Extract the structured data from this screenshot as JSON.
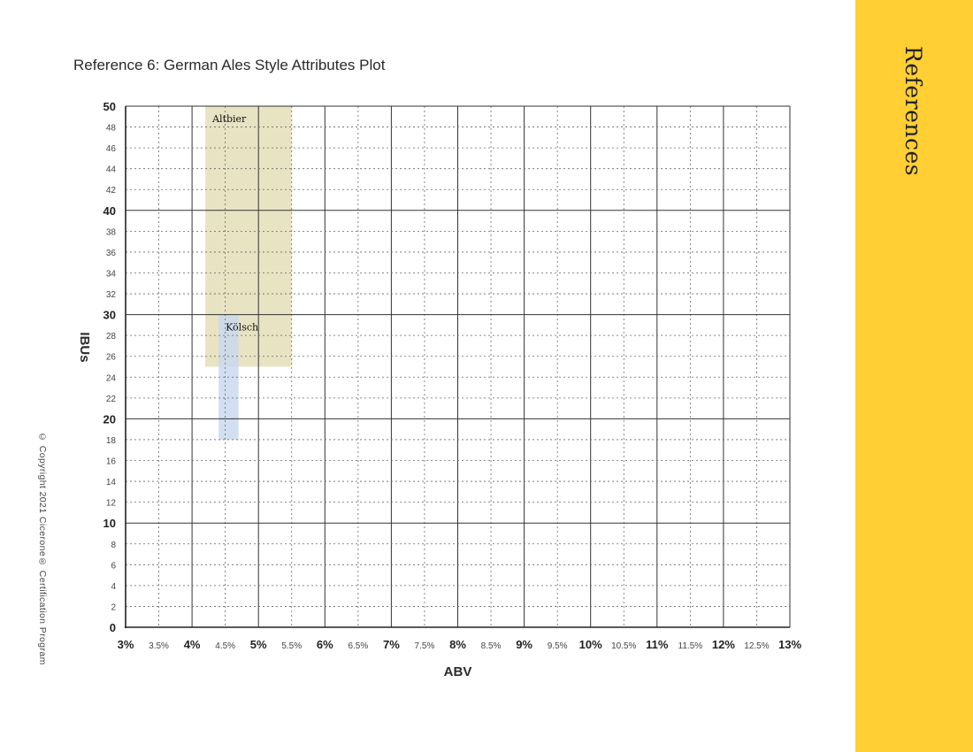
{
  "sidebar": {
    "title": "References"
  },
  "copyright": "© Copyright 2021 Cicerone® Certification Program",
  "colors": {
    "sidebar": "#ffcf33",
    "altbier_fill": "#e8e3c3",
    "kolsch_fill": "#c9d9ed",
    "grid_major": "#333333",
    "grid_minor": "#666666"
  },
  "chart_data": {
    "type": "range-boxes",
    "title": "Reference 6: German Ales Style Attributes Plot",
    "xlabel": "ABV",
    "ylabel": "IBUs",
    "xlim": [
      3,
      13
    ],
    "ylim": [
      0,
      50
    ],
    "x_ticks": [
      {
        "value": 3,
        "label": "3%",
        "major": true
      },
      {
        "value": 3.5,
        "label": "3.5%",
        "major": false
      },
      {
        "value": 4,
        "label": "4%",
        "major": true
      },
      {
        "value": 4.5,
        "label": "4.5%",
        "major": false
      },
      {
        "value": 5,
        "label": "5%",
        "major": true
      },
      {
        "value": 5.5,
        "label": "5.5%",
        "major": false
      },
      {
        "value": 6,
        "label": "6%",
        "major": true
      },
      {
        "value": 6.5,
        "label": "6.5%",
        "major": false
      },
      {
        "value": 7,
        "label": "7%",
        "major": true
      },
      {
        "value": 7.5,
        "label": "7.5%",
        "major": false
      },
      {
        "value": 8,
        "label": "8%",
        "major": true
      },
      {
        "value": 8.5,
        "label": "8.5%",
        "major": false
      },
      {
        "value": 9,
        "label": "9%",
        "major": true
      },
      {
        "value": 9.5,
        "label": "9.5%",
        "major": false
      },
      {
        "value": 10,
        "label": "10%",
        "major": true
      },
      {
        "value": 10.5,
        "label": "10.5%",
        "major": false
      },
      {
        "value": 11,
        "label": "11%",
        "major": true
      },
      {
        "value": 11.5,
        "label": "11.5%",
        "major": false
      },
      {
        "value": 12,
        "label": "12%",
        "major": true
      },
      {
        "value": 12.5,
        "label": "12.5%",
        "major": false
      },
      {
        "value": 13,
        "label": "13%",
        "major": true
      }
    ],
    "y_ticks": [
      {
        "value": 0,
        "label": "0",
        "major": true
      },
      {
        "value": 2,
        "label": "2",
        "major": false
      },
      {
        "value": 4,
        "label": "4",
        "major": false
      },
      {
        "value": 6,
        "label": "6",
        "major": false
      },
      {
        "value": 8,
        "label": "8",
        "major": false
      },
      {
        "value": 10,
        "label": "10",
        "major": true
      },
      {
        "value": 12,
        "label": "12",
        "major": false
      },
      {
        "value": 14,
        "label": "14",
        "major": false
      },
      {
        "value": 16,
        "label": "16",
        "major": false
      },
      {
        "value": 18,
        "label": "18",
        "major": false
      },
      {
        "value": 20,
        "label": "20",
        "major": true
      },
      {
        "value": 22,
        "label": "22",
        "major": false
      },
      {
        "value": 24,
        "label": "24",
        "major": false
      },
      {
        "value": 26,
        "label": "26",
        "major": false
      },
      {
        "value": 28,
        "label": "28",
        "major": false
      },
      {
        "value": 30,
        "label": "30",
        "major": true
      },
      {
        "value": 32,
        "label": "32",
        "major": false
      },
      {
        "value": 34,
        "label": "34",
        "major": false
      },
      {
        "value": 36,
        "label": "36",
        "major": false
      },
      {
        "value": 38,
        "label": "38",
        "major": false
      },
      {
        "value": 40,
        "label": "40",
        "major": true
      },
      {
        "value": 42,
        "label": "42",
        "major": false
      },
      {
        "value": 44,
        "label": "44",
        "major": false
      },
      {
        "value": 46,
        "label": "46",
        "major": false
      },
      {
        "value": 48,
        "label": "48",
        "major": false
      },
      {
        "value": 50,
        "label": "50",
        "major": true
      }
    ],
    "grid": "major solid, minor dotted",
    "series": [
      {
        "name": "Altbier",
        "abv": [
          4.2,
          5.5
        ],
        "ibu": [
          25,
          50
        ],
        "color": "#e8e3c3"
      },
      {
        "name": "Kölsch",
        "abv": [
          4.4,
          4.7
        ],
        "ibu": [
          18,
          30
        ],
        "color": "#c9d9ed"
      }
    ]
  }
}
